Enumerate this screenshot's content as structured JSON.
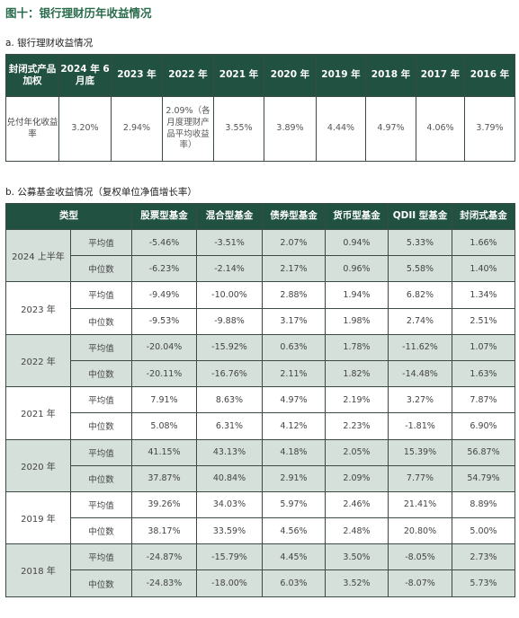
{
  "figure_title": "图十：银行理财历年收益情况",
  "section_a_title": "a. 银行理财收益情况",
  "section_b_title": "b. 公募基金收益情况（复权单位净值增长率）",
  "bank_table": {
    "headers": [
      "封闭式产品加权",
      "2024 年 6 月底",
      "2023 年",
      "2022 年",
      "2021 年",
      "2020 年",
      "2019 年",
      "2018 年",
      "2017 年",
      "2016 年"
    ],
    "row_label": "兑付年化收益率",
    "values": [
      "3.20%",
      "2.94%",
      "2.09%（各月度理财产品平均收益率）",
      "3.55%",
      "3.89%",
      "4.44%",
      "4.97%",
      "4.06%",
      "3.79%"
    ]
  },
  "fund_table": {
    "header_type": "类型",
    "columns": [
      "股票型基金",
      "混合型基金",
      "债券型基金",
      "货币型基金",
      "QDII 型基金",
      "封闭式基金"
    ],
    "groups": [
      {
        "year": "2024 上半年",
        "rows": [
          {
            "label": "平均值",
            "values": [
              "-5.46%",
              "-3.51%",
              "2.07%",
              "0.94%",
              "5.33%",
              "1.66%"
            ]
          },
          {
            "label": "中位数",
            "values": [
              "-6.23%",
              "-2.14%",
              "2.17%",
              "0.96%",
              "5.58%",
              "1.40%"
            ]
          }
        ]
      },
      {
        "year": "2023 年",
        "rows": [
          {
            "label": "平均值",
            "values": [
              "-9.49%",
              "-10.00%",
              "2.88%",
              "1.94%",
              "6.82%",
              "1.34%"
            ]
          },
          {
            "label": "中位数",
            "values": [
              "-9.53%",
              "-9.88%",
              "3.17%",
              "1.98%",
              "2.74%",
              "2.51%"
            ]
          }
        ]
      },
      {
        "year": "2022 年",
        "rows": [
          {
            "label": "平均值",
            "values": [
              "-20.04%",
              "-15.92%",
              "0.63%",
              "1.78%",
              "-11.62%",
              "1.07%"
            ]
          },
          {
            "label": "中位数",
            "values": [
              "-20.11%",
              "-16.76%",
              "2.11%",
              "1.82%",
              "-14.48%",
              "1.63%"
            ]
          }
        ]
      },
      {
        "year": "2021 年",
        "rows": [
          {
            "label": "平均值",
            "values": [
              "7.91%",
              "8.63%",
              "4.97%",
              "2.19%",
              "3.27%",
              "7.87%"
            ]
          },
          {
            "label": "中位数",
            "values": [
              "5.08%",
              "6.31%",
              "4.12%",
              "2.23%",
              "-1.81%",
              "6.90%"
            ]
          }
        ]
      },
      {
        "year": "2020 年",
        "rows": [
          {
            "label": "平均值",
            "values": [
              "41.15%",
              "43.13%",
              "4.18%",
              "2.05%",
              "15.39%",
              "56.87%"
            ]
          },
          {
            "label": "中位数",
            "values": [
              "37.87%",
              "40.84%",
              "2.91%",
              "2.09%",
              "7.77%",
              "54.79%"
            ]
          }
        ]
      },
      {
        "year": "2019 年",
        "rows": [
          {
            "label": "平均值",
            "values": [
              "39.26%",
              "34.03%",
              "5.97%",
              "2.46%",
              "21.41%",
              "8.89%"
            ]
          },
          {
            "label": "中位数",
            "values": [
              "38.17%",
              "33.59%",
              "4.56%",
              "2.48%",
              "20.80%",
              "5.00%"
            ]
          }
        ]
      },
      {
        "year": "2018 年",
        "rows": [
          {
            "label": "平均值",
            "values": [
              "-24.87%",
              "-15.79%",
              "4.45%",
              "3.50%",
              "-8.05%",
              "2.73%"
            ]
          },
          {
            "label": "中位数",
            "values": [
              "-24.83%",
              "-18.00%",
              "6.03%",
              "3.52%",
              "-8.07%",
              "5.73%"
            ]
          }
        ]
      }
    ]
  }
}
